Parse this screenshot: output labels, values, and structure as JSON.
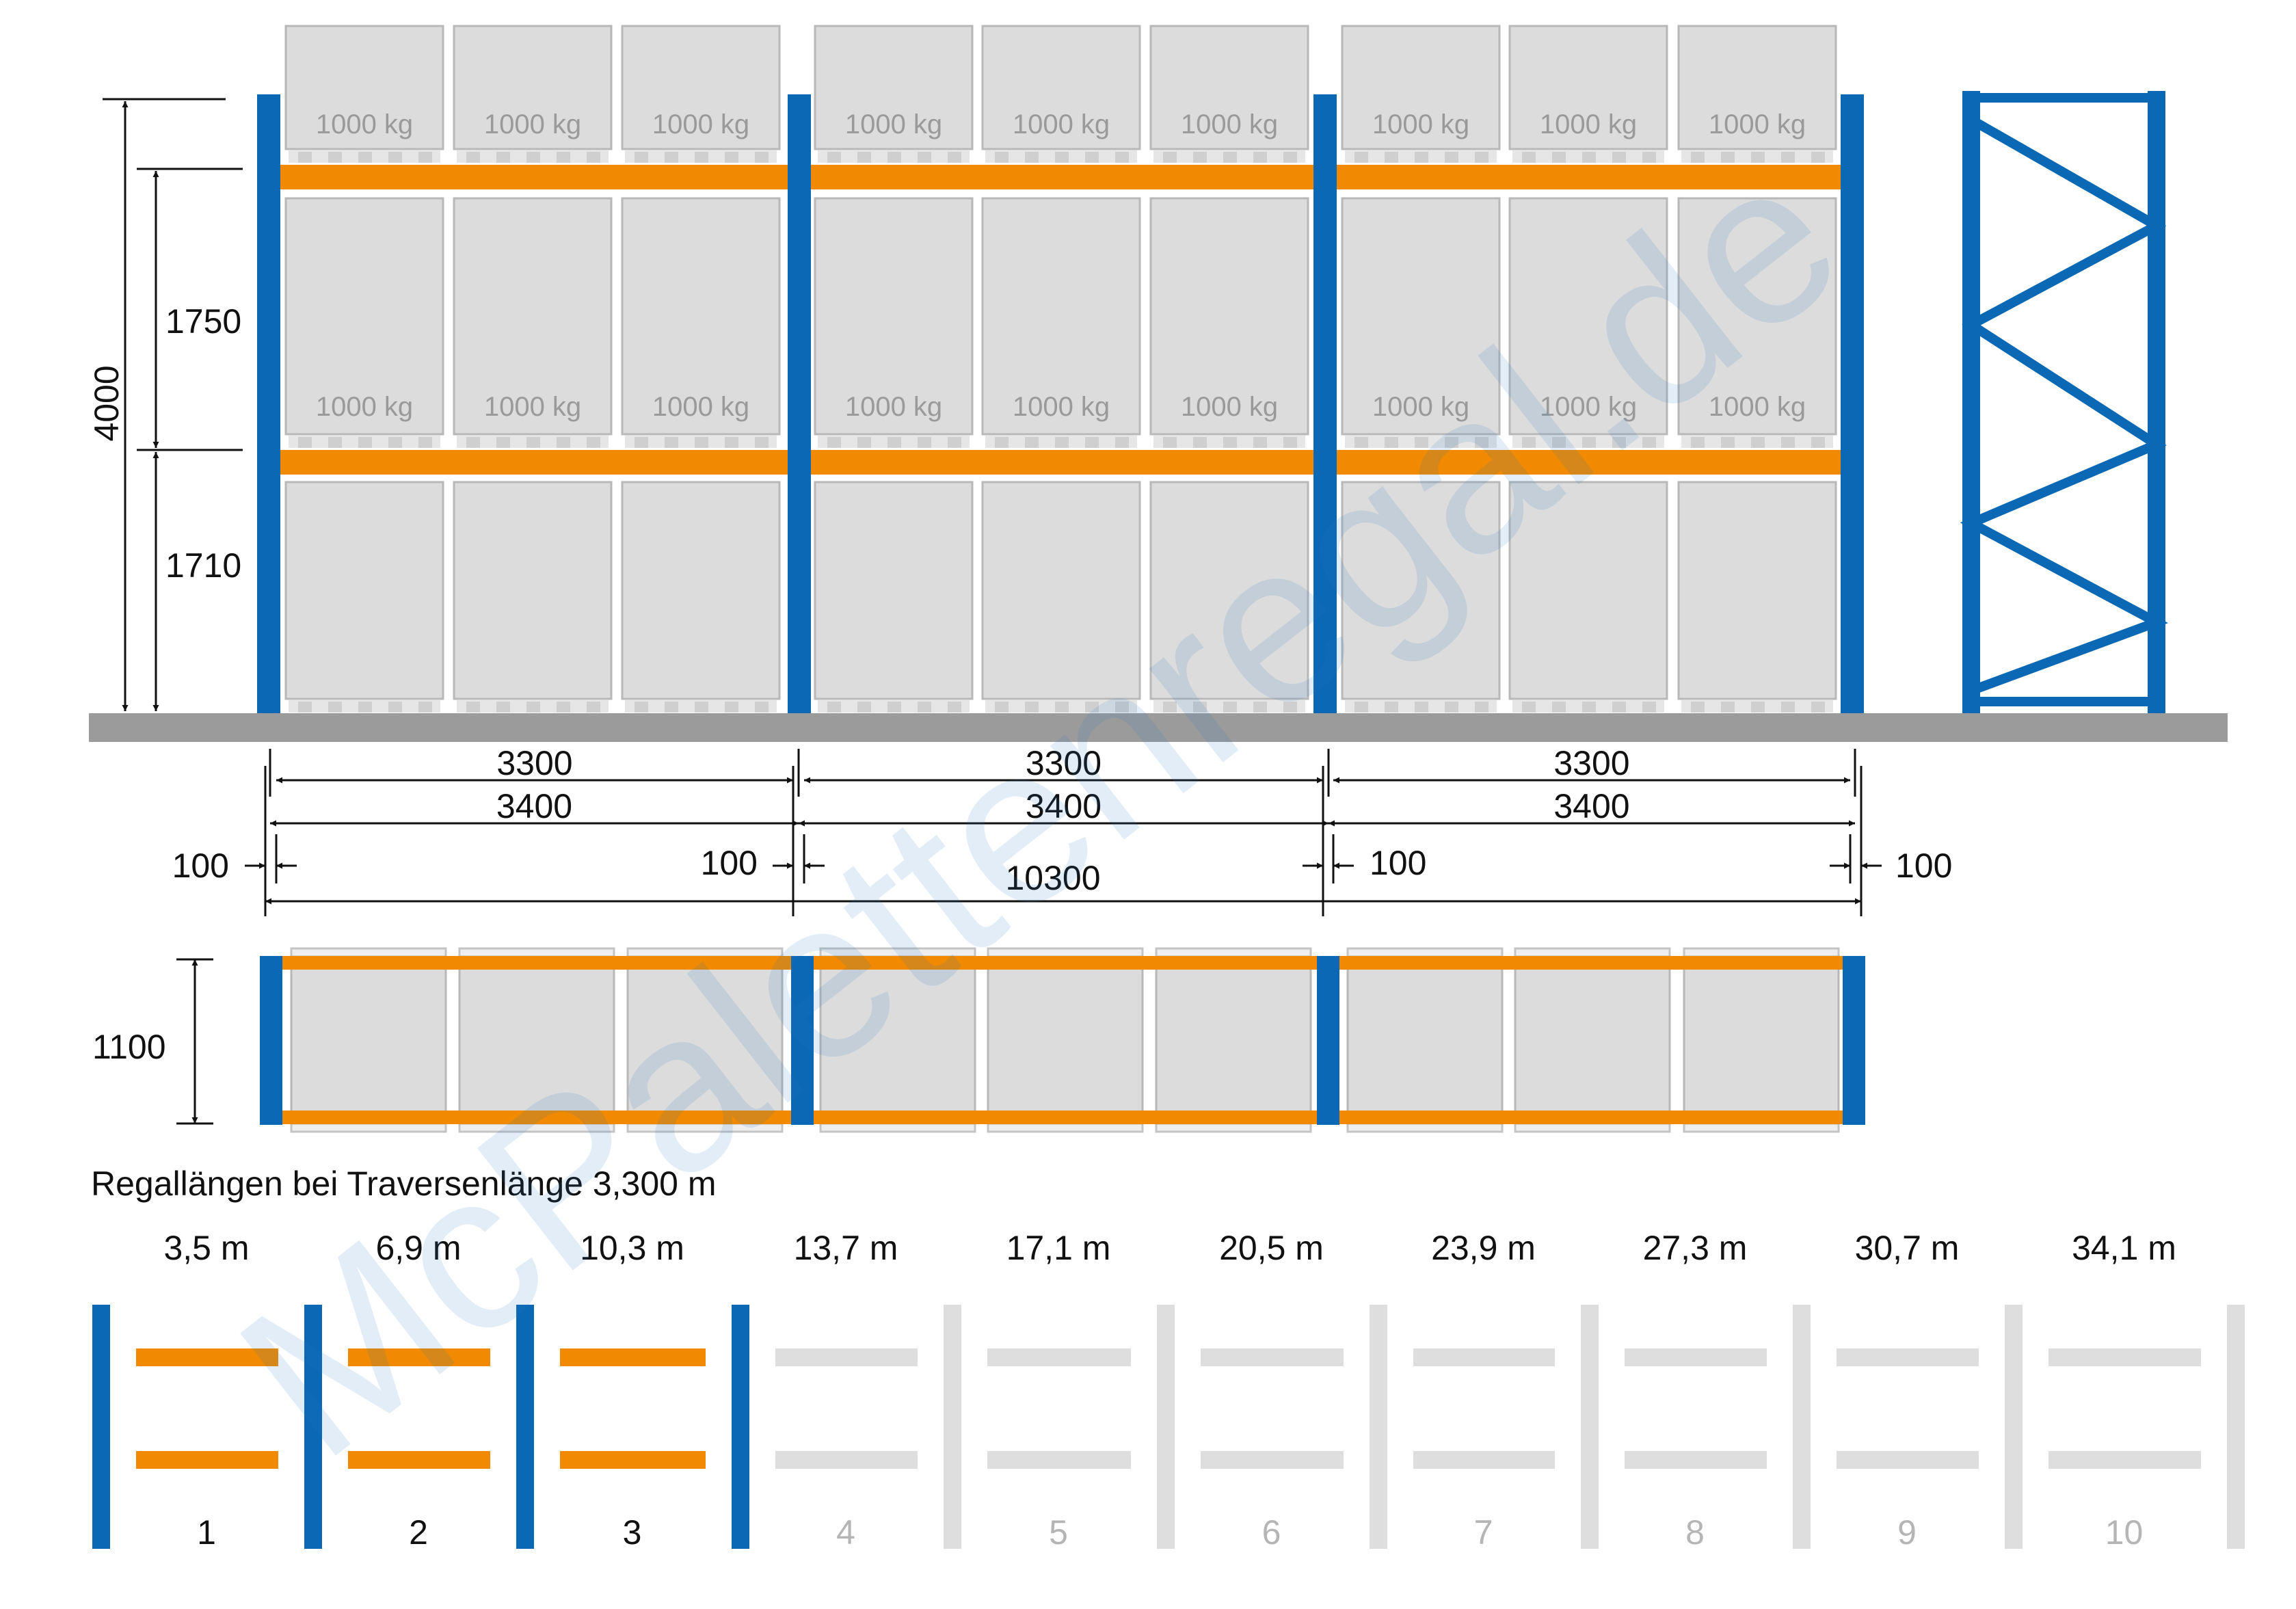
{
  "colors": {
    "upright": "#0a68b4",
    "beam": "#f18a00",
    "pallet": "#dcdcdc",
    "pallet_border": "#b8b8b8",
    "floor": "#9b9b9b",
    "inactive": "#dedede",
    "dimension": "#111111"
  },
  "watermark": "McPalettenregal.de",
  "pallet_load": "1000 kg",
  "dimensions": {
    "total_height": "4000",
    "level_upper": "1750",
    "level_lower": "1710",
    "beam_length": "3300",
    "bay_length": "3400",
    "upright_width": "100",
    "total_length": "10300",
    "depth": "1100"
  },
  "length_table": {
    "title": "Regallängen bei Traversenlänge 3,300 m",
    "active_count": 3,
    "items": [
      {
        "number": "1",
        "length": "3,5 m"
      },
      {
        "number": "2",
        "length": "6,9 m"
      },
      {
        "number": "3",
        "length": "10,3 m"
      },
      {
        "number": "4",
        "length": "13,7 m"
      },
      {
        "number": "5",
        "length": "17,1 m"
      },
      {
        "number": "6",
        "length": "20,5 m"
      },
      {
        "number": "7",
        "length": "23,9 m"
      },
      {
        "number": "8",
        "length": "27,3 m"
      },
      {
        "number": "9",
        "length": "30,7 m"
      },
      {
        "number": "10",
        "length": "34,1 m"
      }
    ]
  }
}
